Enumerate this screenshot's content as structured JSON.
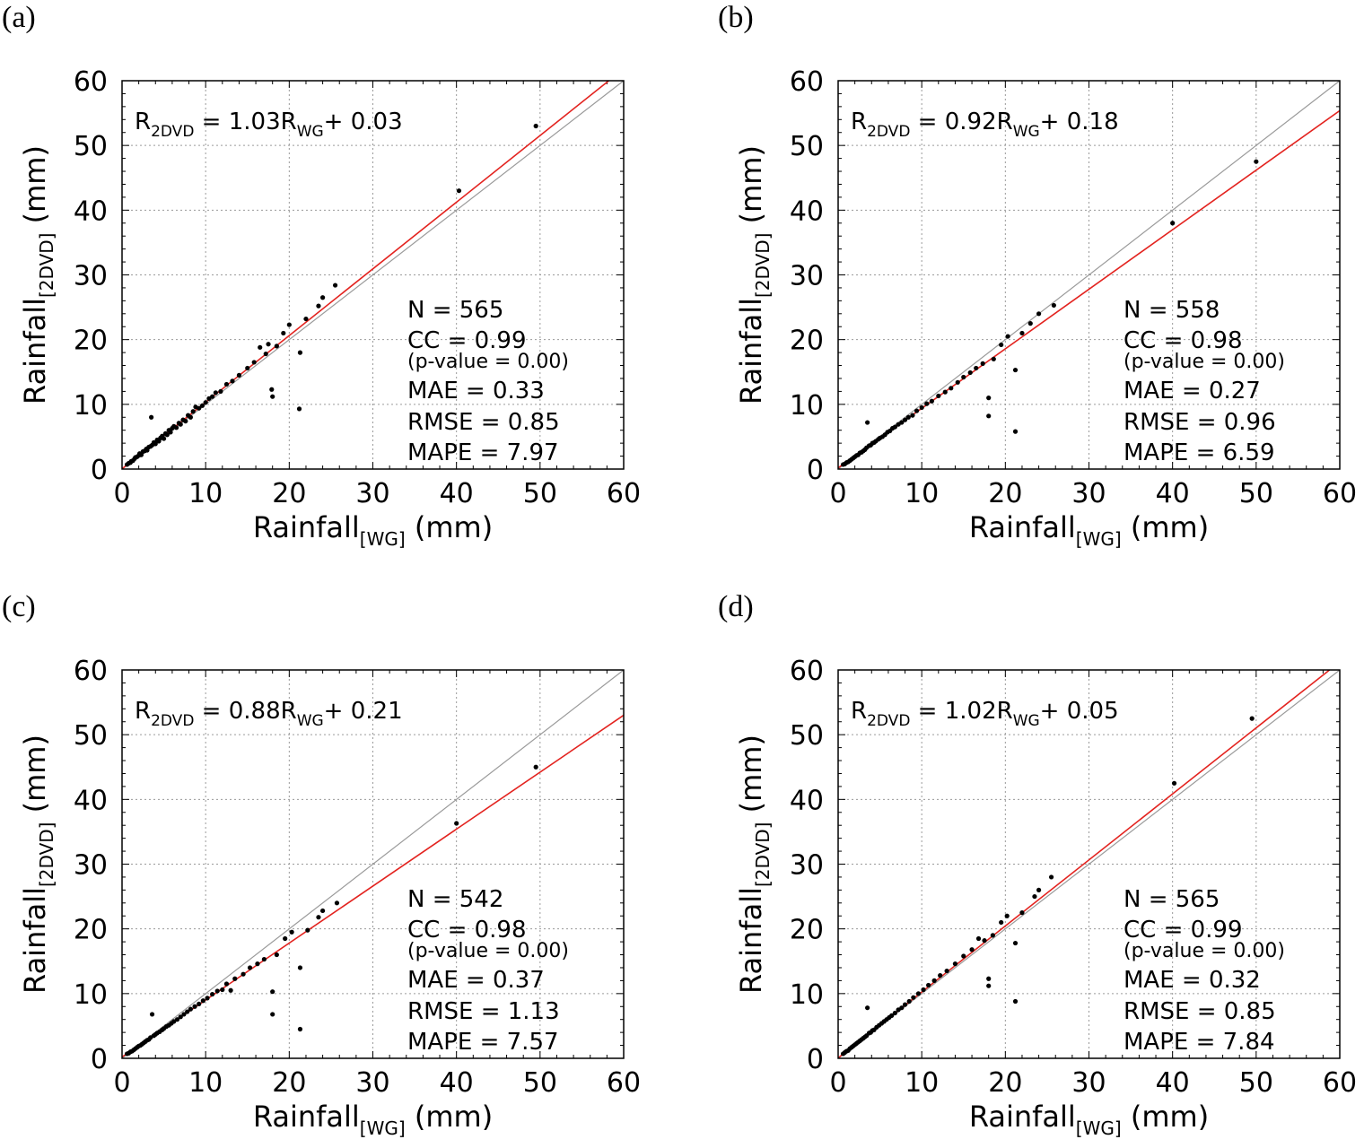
{
  "chart_data": [
    {
      "panel": "(a)",
      "type": "scatter",
      "xlabel": {
        "main": "Rainfall",
        "sub": "[WG]",
        "unit": " (mm)"
      },
      "ylabel": {
        "main": "Rainfall",
        "sub": "[2DVD]",
        "unit": " (mm)"
      },
      "xlim": [
        0,
        60
      ],
      "ylim": [
        0,
        60
      ],
      "xticks": [
        "0",
        "10",
        "20",
        "30",
        "40",
        "50",
        "60"
      ],
      "yticks": [
        "0",
        "10",
        "20",
        "30",
        "40",
        "50",
        "60"
      ],
      "grid": true,
      "equation": {
        "lhs": "R",
        "lhs_sub": "2DVD",
        "mid": " = 1.03R",
        "mid_sub": "WG",
        "rhs": "+ 0.03"
      },
      "fit": {
        "slope": 1.03,
        "intercept": 0.03
      },
      "stats": {
        "n": "N =  565",
        "cc": "CC = 0.99",
        "pvalue": "(p-value = 0.00)",
        "mae": "MAE =  0.33",
        "rmse": "RMSE =  0.85",
        "mape": "MAPE =  7.97"
      },
      "points": [
        [
          0.6,
          0.7
        ],
        [
          0.8,
          0.9
        ],
        [
          1.0,
          1.0
        ],
        [
          1.1,
          1.2
        ],
        [
          1.3,
          1.3
        ],
        [
          1.5,
          1.6
        ],
        [
          1.6,
          1.8
        ],
        [
          1.8,
          1.9
        ],
        [
          2.0,
          2.1
        ],
        [
          2.1,
          2.4
        ],
        [
          2.3,
          2.2
        ],
        [
          2.5,
          2.7
        ],
        [
          2.7,
          2.8
        ],
        [
          2.9,
          3.1
        ],
        [
          3.0,
          2.9
        ],
        [
          3.2,
          3.4
        ],
        [
          3.4,
          3.5
        ],
        [
          3.5,
          8.0
        ],
        [
          3.6,
          3.7
        ],
        [
          3.8,
          4.1
        ],
        [
          4.0,
          3.9
        ],
        [
          4.2,
          4.5
        ],
        [
          4.4,
          4.3
        ],
        [
          4.6,
          4.8
        ],
        [
          4.8,
          5.1
        ],
        [
          5.0,
          4.7
        ],
        [
          5.2,
          5.5
        ],
        [
          5.4,
          5.3
        ],
        [
          5.6,
          6.0
        ],
        [
          5.8,
          5.7
        ],
        [
          6.0,
          6.3
        ],
        [
          6.2,
          6.6
        ],
        [
          6.5,
          6.4
        ],
        [
          6.8,
          7.1
        ],
        [
          7.0,
          6.9
        ],
        [
          7.3,
          7.6
        ],
        [
          7.6,
          7.4
        ],
        [
          7.9,
          8.3
        ],
        [
          8.2,
          8.0
        ],
        [
          8.5,
          8.9
        ],
        [
          8.8,
          9.6
        ],
        [
          9.2,
          9.4
        ],
        [
          9.6,
          9.8
        ],
        [
          10.0,
          10.3
        ],
        [
          10.4,
          10.9
        ],
        [
          10.8,
          11.2
        ],
        [
          11.2,
          11.8
        ],
        [
          11.8,
          12.0
        ],
        [
          12.5,
          13.1
        ],
        [
          13.2,
          13.6
        ],
        [
          14.0,
          14.5
        ],
        [
          15.0,
          15.6
        ],
        [
          15.8,
          16.5
        ],
        [
          16.5,
          18.8
        ],
        [
          17.2,
          17.8
        ],
        [
          17.5,
          19.3
        ],
        [
          17.9,
          12.3
        ],
        [
          18.0,
          11.2
        ],
        [
          18.5,
          19.0
        ],
        [
          19.3,
          21.0
        ],
        [
          20.0,
          22.3
        ],
        [
          21.2,
          9.3
        ],
        [
          21.3,
          18.0
        ],
        [
          22.0,
          23.2
        ],
        [
          23.5,
          25.2
        ],
        [
          24.0,
          26.5
        ],
        [
          25.5,
          28.4
        ],
        [
          40.3,
          43.0
        ],
        [
          49.5,
          53.0
        ]
      ]
    },
    {
      "panel": "(b)",
      "type": "scatter",
      "xlabel": {
        "main": "Rainfall",
        "sub": "[WG]",
        "unit": " (mm)"
      },
      "ylabel": {
        "main": "Rainfall",
        "sub": "[2DVD]",
        "unit": " (mm)"
      },
      "xlim": [
        0,
        60
      ],
      "ylim": [
        0,
        60
      ],
      "xticks": [
        "0",
        "10",
        "20",
        "30",
        "40",
        "50",
        "60"
      ],
      "yticks": [
        "0",
        "10",
        "20",
        "30",
        "40",
        "50",
        "60"
      ],
      "grid": true,
      "equation": {
        "lhs": "R",
        "lhs_sub": "2DVD",
        "mid": " = 0.92R",
        "mid_sub": "WG",
        "rhs": "+ 0.18"
      },
      "fit": {
        "slope": 0.92,
        "intercept": 0.18
      },
      "stats": {
        "n": "N =  558",
        "cc": "CC = 0.98",
        "pvalue": "(p-value = 0.00)",
        "mae": "MAE =  0.27",
        "rmse": "RMSE =  0.96",
        "mape": "MAPE =  6.59"
      },
      "points": [
        [
          0.6,
          0.7
        ],
        [
          0.8,
          0.8
        ],
        [
          1.0,
          1.0
        ],
        [
          1.2,
          1.1
        ],
        [
          1.4,
          1.3
        ],
        [
          1.6,
          1.5
        ],
        [
          1.8,
          1.7
        ],
        [
          2.0,
          1.9
        ],
        [
          2.2,
          2.1
        ],
        [
          2.4,
          2.2
        ],
        [
          2.6,
          2.5
        ],
        [
          2.8,
          2.6
        ],
        [
          3.0,
          2.8
        ],
        [
          3.2,
          3.0
        ],
        [
          3.4,
          3.3
        ],
        [
          3.5,
          7.2
        ],
        [
          3.7,
          3.6
        ],
        [
          3.9,
          3.7
        ],
        [
          4.1,
          4.0
        ],
        [
          4.3,
          4.1
        ],
        [
          4.5,
          4.3
        ],
        [
          4.8,
          4.6
        ],
        [
          5.0,
          4.8
        ],
        [
          5.3,
          5.0
        ],
        [
          5.6,
          5.3
        ],
        [
          5.9,
          5.7
        ],
        [
          6.2,
          5.9
        ],
        [
          6.5,
          6.3
        ],
        [
          6.8,
          6.5
        ],
        [
          7.2,
          6.9
        ],
        [
          7.6,
          7.2
        ],
        [
          8.0,
          7.6
        ],
        [
          8.4,
          8.0
        ],
        [
          8.9,
          8.3
        ],
        [
          9.4,
          9.0
        ],
        [
          10.0,
          9.5
        ],
        [
          10.6,
          10.1
        ],
        [
          11.2,
          10.5
        ],
        [
          12.0,
          11.3
        ],
        [
          12.8,
          11.9
        ],
        [
          13.5,
          12.5
        ],
        [
          14.3,
          13.4
        ],
        [
          15.0,
          14.2
        ],
        [
          15.8,
          14.9
        ],
        [
          16.5,
          15.6
        ],
        [
          17.3,
          16.3
        ],
        [
          18.0,
          11.0
        ],
        [
          18.0,
          8.2
        ],
        [
          18.6,
          17.0
        ],
        [
          19.5,
          19.2
        ],
        [
          20.3,
          20.5
        ],
        [
          21.2,
          15.3
        ],
        [
          21.2,
          5.8
        ],
        [
          22.0,
          21.0
        ],
        [
          23.0,
          22.5
        ],
        [
          24.0,
          24.0
        ],
        [
          25.8,
          25.3
        ],
        [
          40.0,
          38.0
        ],
        [
          50.0,
          47.5
        ]
      ]
    },
    {
      "panel": "(c)",
      "type": "scatter",
      "xlabel": {
        "main": "Rainfall",
        "sub": "[WG]",
        "unit": " (mm)"
      },
      "ylabel": {
        "main": "Rainfall",
        "sub": "[2DVD]",
        "unit": " (mm)"
      },
      "xlim": [
        0,
        60
      ],
      "ylim": [
        0,
        60
      ],
      "xticks": [
        "0",
        "10",
        "20",
        "30",
        "40",
        "50",
        "60"
      ],
      "yticks": [
        "0",
        "10",
        "20",
        "30",
        "40",
        "50",
        "60"
      ],
      "grid": true,
      "equation": {
        "lhs": "R",
        "lhs_sub": "2DVD",
        "mid": " = 0.88R",
        "mid_sub": "WG",
        "rhs": "+ 0.21"
      },
      "fit": {
        "slope": 0.88,
        "intercept": 0.21
      },
      "stats": {
        "n": "N =  542",
        "cc": "CC = 0.98",
        "pvalue": "(p-value = 0.00)",
        "mae": "MAE =  0.37",
        "rmse": "RMSE =  1.13",
        "mape": "MAPE =  7.57"
      },
      "points": [
        [
          0.6,
          0.7
        ],
        [
          0.8,
          0.8
        ],
        [
          1.0,
          1.0
        ],
        [
          1.2,
          1.1
        ],
        [
          1.4,
          1.3
        ],
        [
          1.6,
          1.5
        ],
        [
          1.8,
          1.7
        ],
        [
          2.0,
          1.9
        ],
        [
          2.2,
          2.0
        ],
        [
          2.4,
          2.2
        ],
        [
          2.6,
          2.4
        ],
        [
          2.8,
          2.6
        ],
        [
          3.0,
          2.8
        ],
        [
          3.2,
          2.9
        ],
        [
          3.4,
          3.2
        ],
        [
          3.6,
          6.8
        ],
        [
          3.8,
          3.5
        ],
        [
          4.0,
          3.7
        ],
        [
          4.2,
          3.9
        ],
        [
          4.5,
          4.1
        ],
        [
          4.8,
          4.4
        ],
        [
          5.0,
          4.6
        ],
        [
          5.3,
          4.9
        ],
        [
          5.6,
          5.1
        ],
        [
          5.9,
          5.4
        ],
        [
          6.2,
          5.7
        ],
        [
          6.6,
          6.0
        ],
        [
          7.0,
          6.4
        ],
        [
          7.4,
          6.8
        ],
        [
          7.8,
          7.2
        ],
        [
          8.2,
          7.6
        ],
        [
          8.7,
          8.0
        ],
        [
          9.2,
          8.4
        ],
        [
          9.7,
          8.9
        ],
        [
          10.2,
          9.3
        ],
        [
          10.8,
          9.9
        ],
        [
          11.4,
          10.4
        ],
        [
          12.0,
          10.6
        ],
        [
          12.5,
          11.5
        ],
        [
          13.0,
          10.5
        ],
        [
          13.5,
          12.3
        ],
        [
          14.5,
          13.0
        ],
        [
          15.3,
          14.0
        ],
        [
          16.2,
          14.6
        ],
        [
          17.0,
          15.3
        ],
        [
          18.0,
          10.3
        ],
        [
          18.0,
          6.8
        ],
        [
          18.5,
          16.0
        ],
        [
          19.5,
          18.5
        ],
        [
          20.3,
          19.5
        ],
        [
          21.3,
          14.0
        ],
        [
          21.3,
          4.5
        ],
        [
          22.2,
          19.8
        ],
        [
          23.5,
          21.8
        ],
        [
          24.0,
          22.8
        ],
        [
          25.7,
          24.0
        ],
        [
          40.0,
          36.3
        ],
        [
          49.5,
          45.0
        ]
      ]
    },
    {
      "panel": "(d)",
      "type": "scatter",
      "xlabel": {
        "main": "Rainfall",
        "sub": "[WG]",
        "unit": " (mm)"
      },
      "ylabel": {
        "main": "Rainfall",
        "sub": "[2DVD]",
        "unit": " (mm)"
      },
      "xlim": [
        0,
        60
      ],
      "ylim": [
        0,
        60
      ],
      "xticks": [
        "0",
        "10",
        "20",
        "30",
        "40",
        "50",
        "60"
      ],
      "yticks": [
        "0",
        "10",
        "20",
        "30",
        "40",
        "50",
        "60"
      ],
      "grid": true,
      "equation": {
        "lhs": "R",
        "lhs_sub": "2DVD",
        "mid": " = 1.02R",
        "mid_sub": "WG",
        "rhs": "+ 0.05"
      },
      "fit": {
        "slope": 1.02,
        "intercept": 0.05
      },
      "stats": {
        "n": "N =  565",
        "cc": "CC = 0.99",
        "pvalue": "(p-value = 0.00)",
        "mae": "MAE =  0.32",
        "rmse": "RMSE =  0.85",
        "mape": "MAPE =  7.84"
      },
      "points": [
        [
          0.6,
          0.7
        ],
        [
          0.8,
          0.9
        ],
        [
          1.0,
          1.1
        ],
        [
          1.2,
          1.2
        ],
        [
          1.4,
          1.5
        ],
        [
          1.6,
          1.7
        ],
        [
          1.8,
          1.9
        ],
        [
          2.0,
          2.1
        ],
        [
          2.2,
          2.3
        ],
        [
          2.4,
          2.5
        ],
        [
          2.6,
          2.7
        ],
        [
          2.8,
          2.9
        ],
        [
          3.0,
          3.1
        ],
        [
          3.2,
          3.3
        ],
        [
          3.4,
          3.5
        ],
        [
          3.5,
          7.8
        ],
        [
          3.7,
          3.9
        ],
        [
          3.9,
          4.0
        ],
        [
          4.1,
          4.3
        ],
        [
          4.3,
          4.4
        ],
        [
          4.6,
          4.8
        ],
        [
          4.9,
          5.1
        ],
        [
          5.2,
          5.4
        ],
        [
          5.5,
          5.7
        ],
        [
          5.8,
          6.0
        ],
        [
          6.1,
          6.3
        ],
        [
          6.4,
          6.6
        ],
        [
          6.8,
          7.0
        ],
        [
          7.2,
          7.5
        ],
        [
          7.6,
          7.8
        ],
        [
          8.0,
          8.3
        ],
        [
          8.5,
          8.8
        ],
        [
          9.0,
          9.4
        ],
        [
          9.6,
          10.0
        ],
        [
          10.2,
          10.6
        ],
        [
          10.8,
          11.3
        ],
        [
          11.5,
          12.0
        ],
        [
          12.2,
          12.8
        ],
        [
          13.0,
          13.5
        ],
        [
          14.0,
          14.6
        ],
        [
          15.0,
          15.8
        ],
        [
          16.0,
          16.8
        ],
        [
          16.8,
          18.5
        ],
        [
          17.5,
          18.2
        ],
        [
          18.0,
          12.3
        ],
        [
          18.0,
          11.2
        ],
        [
          18.5,
          19.0
        ],
        [
          19.5,
          21.0
        ],
        [
          20.2,
          22.0
        ],
        [
          21.2,
          17.8
        ],
        [
          21.2,
          8.8
        ],
        [
          22.0,
          22.5
        ],
        [
          23.5,
          25.0
        ],
        [
          24.0,
          26.0
        ],
        [
          25.5,
          28.0
        ],
        [
          40.2,
          42.5
        ],
        [
          49.5,
          52.5
        ]
      ]
    }
  ]
}
